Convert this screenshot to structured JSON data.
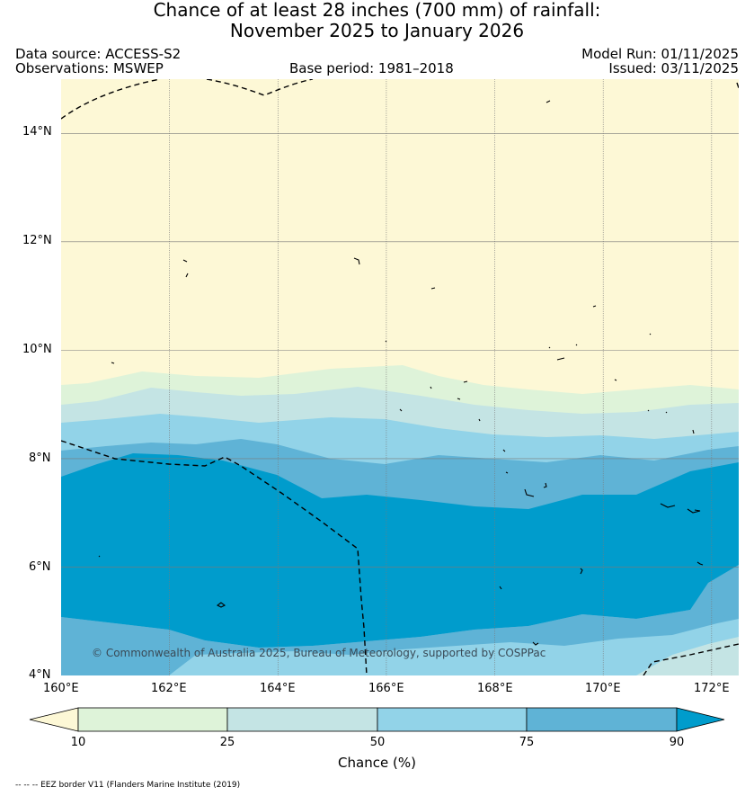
{
  "title": {
    "line1": "Chance of at least 28 inches (700  mm) of rainfall:",
    "line2": "November 2025 to January 2026"
  },
  "meta": {
    "data_source": "Data source: ACCESS-S2",
    "observations": "Observations: MSWEP",
    "base_period": "Base period: 1981–2018",
    "model_run": "Model Run: 01/11/2025",
    "issued": "Issued: 03/11/2025"
  },
  "map": {
    "lon_range": [
      160,
      172.5
    ],
    "lat_range": [
      4,
      15
    ],
    "lon_ticks": [
      "160°E",
      "162°E",
      "164°E",
      "166°E",
      "168°E",
      "170°E",
      "172°E"
    ],
    "lat_ticks": [
      "4°N",
      "6°N",
      "8°N",
      "10°N",
      "12°N",
      "14°N"
    ],
    "copyright": "© Commonwealth of Australia 2025, Bureau of Meteorology, supported by COSPPac",
    "colors": {
      "lt10": "#fdf8d6",
      "b10_25": "#def3d9",
      "b25_50": "#c4e4e4",
      "b50_75": "#92d3e8",
      "b75_90": "#5fb3d6",
      "gt90": "#009ccc",
      "grid": "#7a7a7a",
      "border": "#000000"
    }
  },
  "legend": {
    "ticks": [
      "10",
      "25",
      "50",
      "75",
      "90"
    ],
    "label": "Chance (%)"
  },
  "footnote": "-- -- -- EEZ border V11 (Flanders Marine Institute (2019)"
}
